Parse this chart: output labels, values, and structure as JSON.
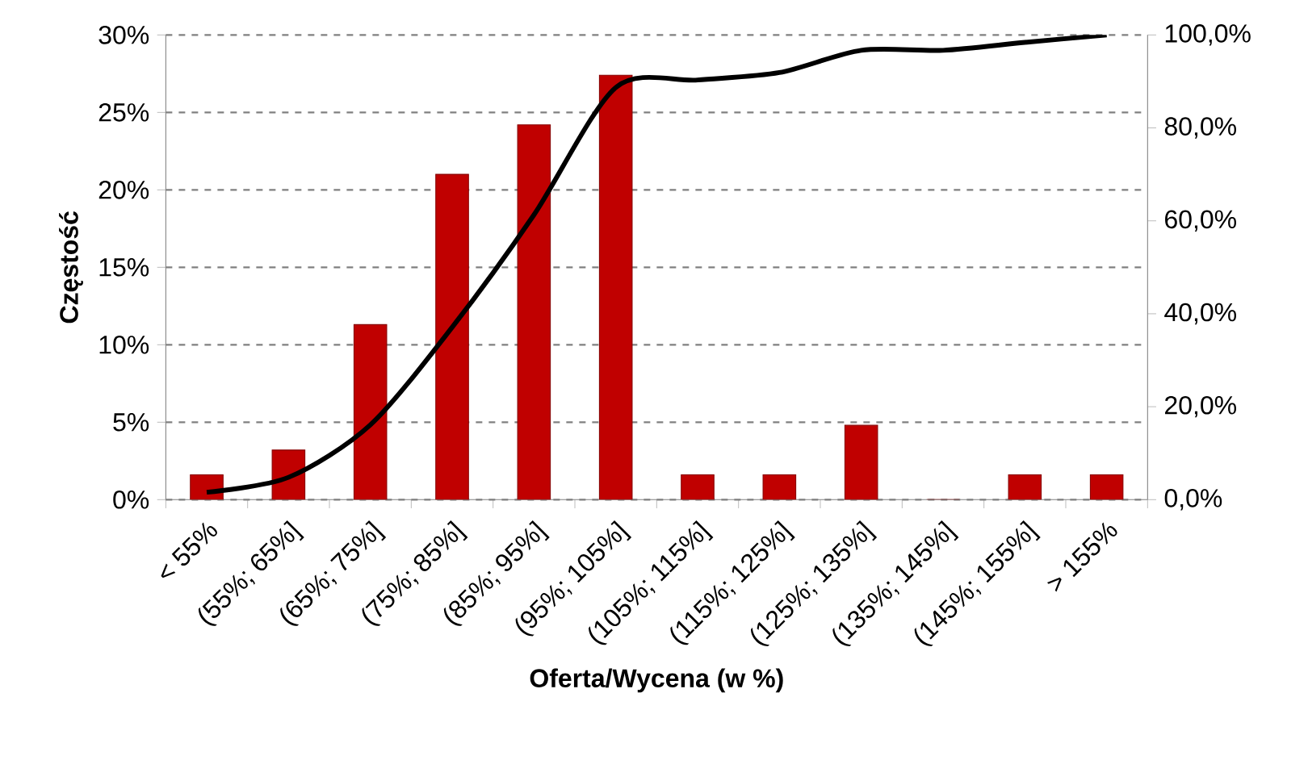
{
  "chart_data": {
    "type": "bar",
    "xlabel": "Oferta/Wycena (w %)",
    "ylabel": "Częstość",
    "categories": [
      "< 55%",
      "(55%; 65%]",
      "(65%; 75%]",
      "(75%; 85%]",
      "(85%; 95%]",
      "(95%; 105%]",
      "(105%; 115%]",
      "(115%; 125%]",
      "(125%; 135%]",
      "(135%; 145%]",
      "(145%; 155%]",
      "> 155%"
    ],
    "series": [
      {
        "color": "#c00000",
        "values": [
          1.6,
          3.2,
          11.3,
          21.0,
          24.2,
          27.4,
          1.6,
          1.6,
          4.8,
          0,
          1.6,
          1.6
        ]
      },
      {
        "type": "line",
        "axis": "y2",
        "color": "#000000",
        "values": [
          1.6,
          4.8,
          16.1,
          37.1,
          61.3,
          88.7,
          90.3,
          91.9,
          96.7,
          96.7,
          98.4,
          100
        ]
      }
    ],
    "ylim": [
      0,
      30
    ],
    "yticks": [
      {
        "value": 0,
        "label": "0%"
      },
      {
        "value": 5,
        "label": "5%"
      },
      {
        "value": 10,
        "label": "10%"
      },
      {
        "value": 15,
        "label": "15%"
      },
      {
        "value": 20,
        "label": "20%"
      },
      {
        "value": 25,
        "label": "25%"
      },
      {
        "value": 30,
        "label": "30%"
      }
    ],
    "y2lim": [
      0,
      100
    ],
    "y2ticks": [
      {
        "value": 0,
        "label": "0,0%"
      },
      {
        "value": 20,
        "label": "20,0%"
      },
      {
        "value": 40,
        "label": "40,0%"
      },
      {
        "value": 60,
        "label": "60,0%"
      },
      {
        "value": 80,
        "label": "80,0%"
      },
      {
        "value": 100,
        "label": "100,0%"
      }
    ],
    "grid": "y"
  }
}
